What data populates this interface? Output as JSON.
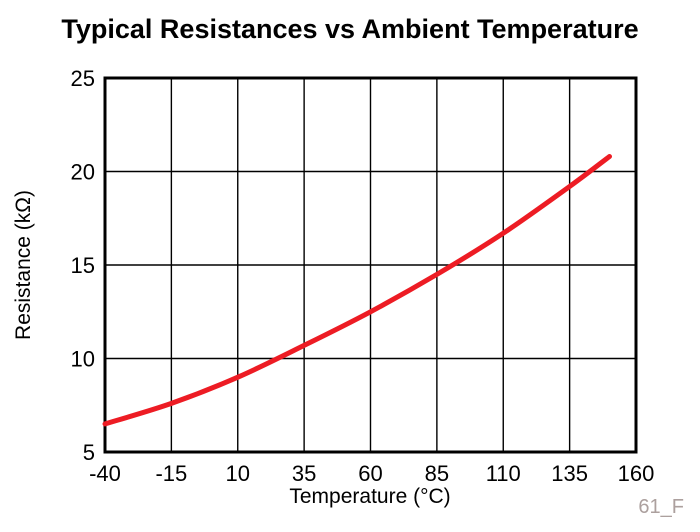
{
  "chart_data": {
    "type": "line",
    "title": "Typical Resistances vs Ambient Temperature",
    "xlabel": "Temperature (°C)",
    "ylabel": "Resistance (kΩ)",
    "xlim": [
      -40,
      160
    ],
    "ylim": [
      5,
      25
    ],
    "x_ticks": [
      "-40",
      "-15",
      "10",
      "35",
      "60",
      "85",
      "110",
      "135",
      "160"
    ],
    "x_tick_values": [
      -40,
      -15,
      10,
      35,
      60,
      85,
      110,
      135,
      160
    ],
    "y_ticks": [
      "5",
      "10",
      "15",
      "20",
      "25"
    ],
    "y_tick_values": [
      5,
      10,
      15,
      20,
      25
    ],
    "grid": true,
    "legend": false,
    "frame_color": "#000000",
    "grid_color": "#000000",
    "series": [
      {
        "color": "#ed1c24",
        "x": [
          -40,
          -15,
          10,
          35,
          60,
          85,
          110,
          135,
          150
        ],
        "y": [
          6.5,
          7.6,
          9.0,
          10.7,
          12.5,
          14.5,
          16.7,
          19.2,
          20.8
        ]
      }
    ],
    "watermark": "61_F"
  }
}
